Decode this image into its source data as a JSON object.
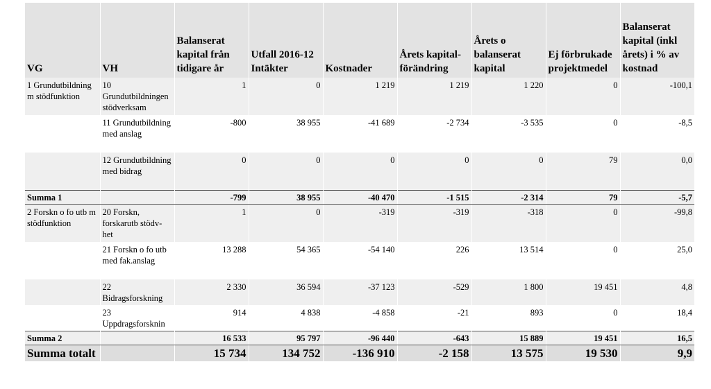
{
  "table": {
    "headers": [
      "VG",
      "VH",
      "Balanserat kapital från tidigare år",
      "Utfall 2016-12 Intäkter",
      "Kostnader",
      "Årets kapital-förändring",
      "Årets o balanserat kapital",
      "Ej förbrukade projektmedel",
      "Balanserat kapital (inkl årets) i % av kostnad"
    ],
    "rows": [
      [
        "1 Grundutbildning m stödfunktion",
        "10 Grundutbildningen stödverksam",
        "1",
        "0",
        "1 219",
        "1 219",
        "1 220",
        "0",
        "-100,1"
      ],
      [
        "",
        "11 Grundutbildning med anslag",
        "-800",
        "38 955",
        "-41 689",
        "-2 734",
        "-3 535",
        "0",
        "-8,5"
      ],
      [
        "",
        "12 Grundutbildning med bidrag",
        "0",
        "0",
        "0",
        "0",
        "0",
        "79",
        "0,0"
      ],
      [
        "Summa 1",
        "",
        "-799",
        "38 955",
        "-40 470",
        "-1 515",
        "-2 314",
        "79",
        "-5,7"
      ],
      [
        "2 Forskn o fo utb m stödfunktion",
        "20 Forskn, forskarutb stödv-het",
        "1",
        "0",
        "-319",
        "-319",
        "-318",
        "0",
        "-99,8"
      ],
      [
        "",
        "21 Forskn o fo utb med fak.anslag",
        "13 288",
        "54 365",
        "-54 140",
        "226",
        "13 514",
        "0",
        "25,0"
      ],
      [
        "",
        "22 Bidragsforskning",
        "2 330",
        "36 594",
        "-37 123",
        "-529",
        "1 800",
        "19 451",
        "4,8"
      ],
      [
        "",
        "23 Uppdragsforsknin",
        "914",
        "4 838",
        "-4 858",
        "-21",
        "893",
        "0",
        "18,4"
      ],
      [
        "Summa 2",
        "",
        "16 533",
        "95 797",
        "-96 440",
        "-643",
        "15 889",
        "19 451",
        "16,5"
      ],
      [
        "Summa totalt",
        "",
        "15 734",
        "134 752",
        "-136 910",
        "-2 158",
        "13 575",
        "19 530",
        "9,9"
      ]
    ]
  }
}
